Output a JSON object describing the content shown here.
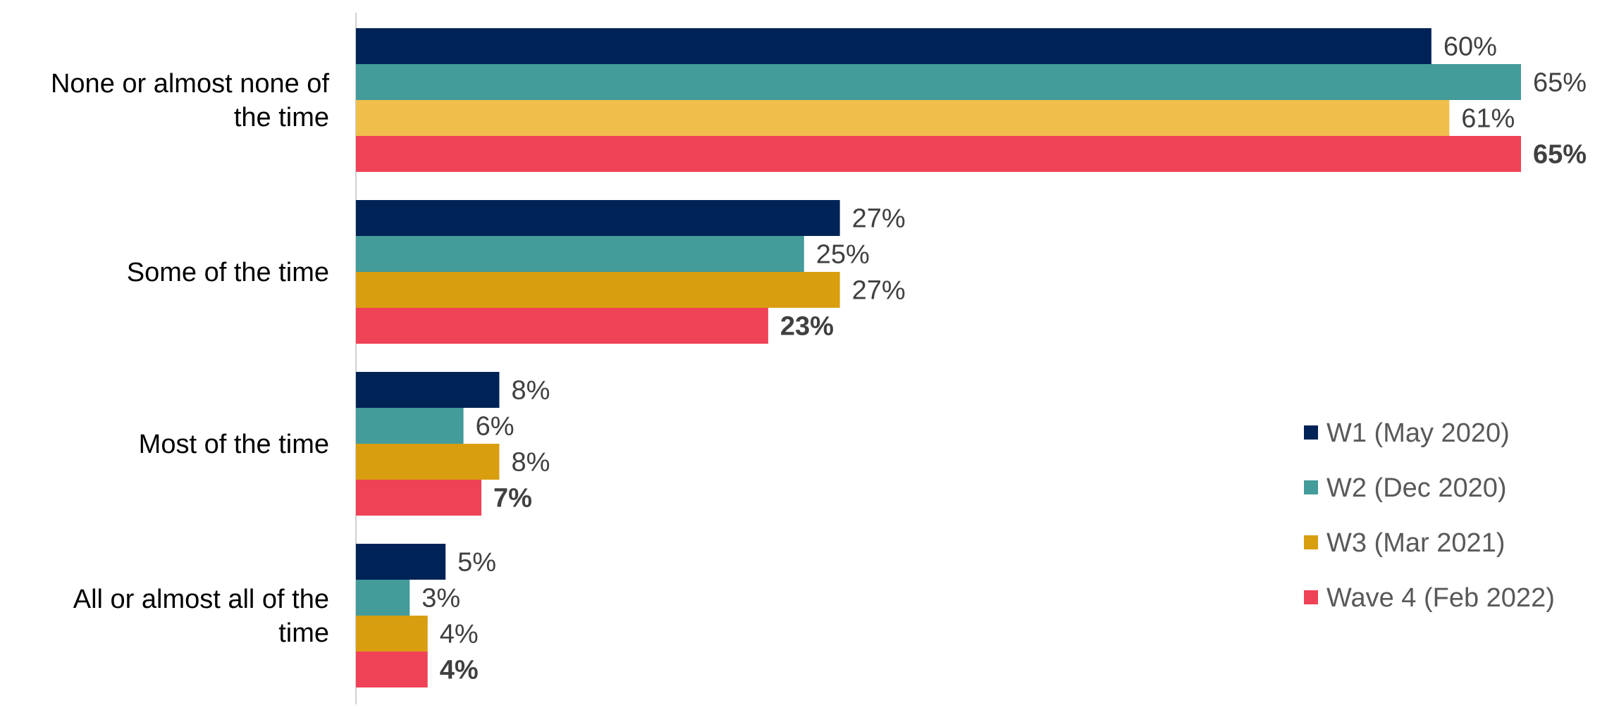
{
  "chart_data": {
    "type": "bar",
    "orientation": "horizontal",
    "categories": [
      "None or almost none of the time",
      "Some of the time",
      "Most of the time",
      "All or almost all of the time"
    ],
    "series": [
      {
        "name": "W1 (May 2020)",
        "color": "#002357",
        "values": [
          60,
          27,
          8,
          5
        ],
        "labels": [
          "60%",
          "27%",
          "8%",
          "5%"
        ],
        "bold_labels": false
      },
      {
        "name": "W2 (Dec 2020)",
        "color": "#439B9A",
        "values": [
          65,
          25,
          6,
          3
        ],
        "labels": [
          "65%",
          "25%",
          "6%",
          "3%"
        ],
        "bold_labels": false
      },
      {
        "name": "W3 (Mar 2021)",
        "color": "#D99E10",
        "values": [
          61,
          27,
          8,
          4
        ],
        "labels": [
          "61%",
          "27%",
          "8%",
          "4%"
        ],
        "bold_labels": false
      },
      {
        "name": "Wave 4 (Feb 2022)",
        "color": "#F04256",
        "values": [
          65,
          23,
          7,
          4
        ],
        "labels": [
          "65%",
          "23%",
          "7%",
          "4%"
        ],
        "bold_labels": true
      }
    ],
    "bar_color_overrides": [
      {
        "series": 2,
        "category": 0,
        "color": "#F0BE4B"
      }
    ],
    "xlim": [
      0,
      65
    ],
    "grid": false,
    "legend_position": "right"
  }
}
